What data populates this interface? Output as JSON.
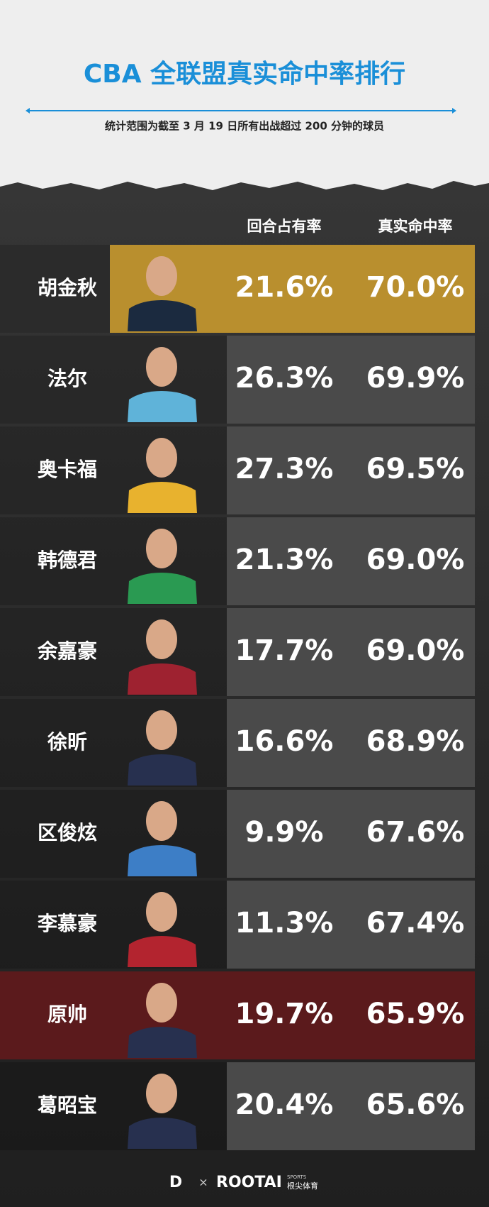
{
  "header": {
    "title": "CBA 全联盟真实命中率排行",
    "subtitle": "统计范围为截至 3 月 19 日所有出战超过 200 分钟的球员"
  },
  "table": {
    "columns": [
      "回合占有率",
      "真实命中率"
    ],
    "rows": [
      [
        "胡金秋",
        "21.6%",
        "70.0%"
      ],
      [
        "法尔",
        "26.3%",
        "69.9%"
      ],
      [
        "奥卡福",
        "27.3%",
        "69.5%"
      ],
      [
        "韩德君",
        "21.3%",
        "69.0%"
      ],
      [
        "余嘉豪",
        "17.7%",
        "69.0%"
      ],
      [
        "徐昕",
        "16.6%",
        "68.9%"
      ],
      [
        "区俊炫",
        "9.9%",
        "67.6%"
      ],
      [
        "李慕豪",
        "11.3%",
        "67.4%"
      ],
      [
        "原帅",
        "19.7%",
        "65.9%"
      ],
      [
        "葛昭宝",
        "20.4%",
        "65.6%"
      ]
    ]
  },
  "footer": {
    "separator": "×",
    "brand": "ROOTAI",
    "brand_sub": "SPORTS",
    "brand_cn": "根尖体育"
  }
}
